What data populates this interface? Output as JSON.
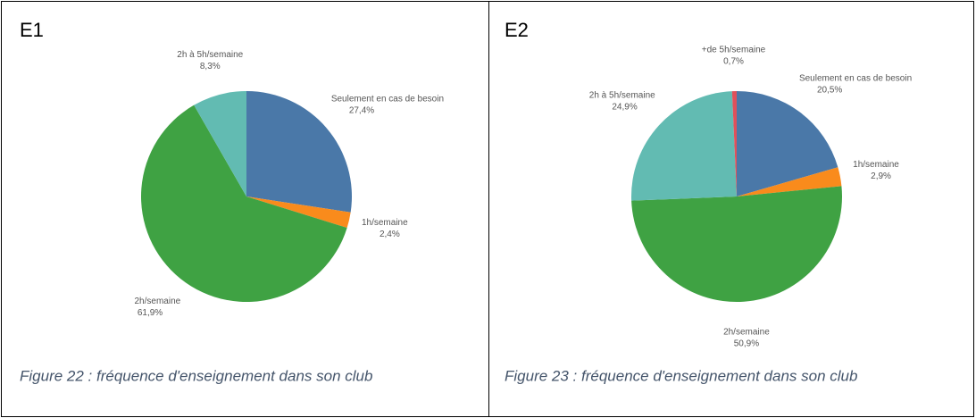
{
  "cells": [
    {
      "label": "E1",
      "caption": "Figure 22 : fréquence d'enseignement dans son club"
    },
    {
      "label": "E2",
      "caption": "Figure 23 : fréquence d'enseignement dans son club"
    }
  ],
  "chart_data": [
    {
      "type": "pie",
      "categories": [
        "Seulement en cas de besoin",
        "1h/semaine",
        "2h/semaine",
        "2h à 5h/semaine"
      ],
      "values": [
        27.4,
        2.4,
        61.9,
        8.3
      ],
      "value_labels": [
        "27,4%",
        "2,4%",
        "61,9%",
        "8,3%"
      ],
      "colors": [
        "#4a78a8",
        "#f98b1c",
        "#3fa243",
        "#62bbb2"
      ]
    },
    {
      "type": "pie",
      "categories": [
        "Seulement en cas de besoin",
        "1h/semaine",
        "2h/semaine",
        "2h à 5h/semaine",
        "+de 5h/semaine"
      ],
      "values": [
        20.5,
        2.9,
        50.9,
        24.9,
        0.7
      ],
      "value_labels": [
        "20,5%",
        "2,9%",
        "50,9%",
        "24,9%",
        "0,7%"
      ],
      "colors": [
        "#4a78a8",
        "#f98b1c",
        "#3fa243",
        "#62bbb2",
        "#e0505a"
      ]
    }
  ]
}
